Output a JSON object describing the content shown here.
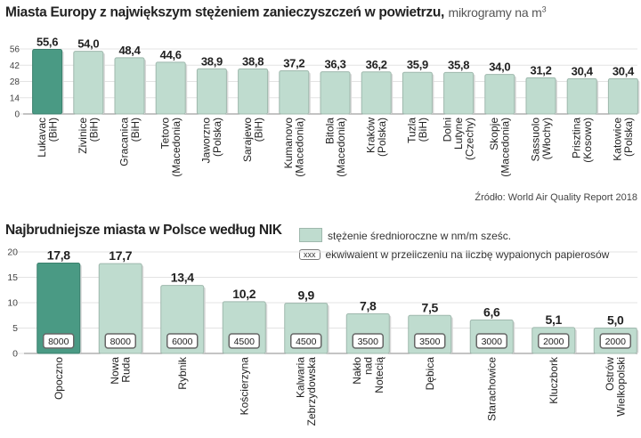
{
  "titles": {
    "chart1_bold": "Miasta Europy z największym stężeniem zanieczyszczeń w powietrzu,",
    "chart1_unit": "mikrogramy na m",
    "chart1_unit_sup": "3",
    "chart2_bold": "Najbrudniejsze miasta w Polsce według NIK",
    "source": "Źródło: World Air Quality Report 2018"
  },
  "legend": {
    "swatch_label": "stężenie średnioroczne w nm/m sześc.",
    "box_label": "xxx",
    "box_desc": "ekwiwalent w przeliczeniu na liczbę wypalonych papierosów"
  },
  "colors": {
    "bar": "#bfdccf",
    "bar_highlight": "#4a9a84",
    "bar_stroke": "#9fb8ad"
  },
  "chart_data": [
    {
      "type": "bar",
      "title": "Miasta Europy z największym stężeniem zanieczyszczeń w powietrzu, mikrogramy na m3",
      "categories": [
        "Lukavac (BiH)",
        "Zivinice (BiH)",
        "Gracanica (BiH)",
        "Tetovo (Macedonia)",
        "Jaworzno (Polska)",
        "Sarajewo (BiH)",
        "Kumanovo (Macedonia)",
        "Bitola (Macedonia)",
        "Kraków (Polska)",
        "Tuzla (BiH)",
        "Dolni Lutyne (Czechy)",
        "Skopje (Macedonia)",
        "Sassuolo (Włochy)",
        "Prisztina (Kosowo)",
        "Katowice (Polska)"
      ],
      "category_lines": [
        [
          "Lukavac",
          "(BiH)"
        ],
        [
          "Zivinice",
          "(BiH)"
        ],
        [
          "Gracanica",
          "(BiH)"
        ],
        [
          "Tetovo",
          "(Macedonia)"
        ],
        [
          "Jaworzno",
          "(Polska)"
        ],
        [
          "Sarajewo",
          "(BiH)"
        ],
        [
          "Kumanovo",
          "(Macedonia)"
        ],
        [
          "Bitola",
          "(Macedonia)"
        ],
        [
          "Kraków",
          "(Polska)"
        ],
        [
          "Tuzla",
          "(BiH)"
        ],
        [
          "Dolni",
          "Lutyne",
          "(Czechy)"
        ],
        [
          "Skopje",
          "(Macedonia)"
        ],
        [
          "Sassuolo",
          "(Włochy)"
        ],
        [
          "Prisztina",
          "(Kosowo)"
        ],
        [
          "Katowice",
          "(Polska)"
        ]
      ],
      "values": [
        55.6,
        54.0,
        48.4,
        44.6,
        38.9,
        38.8,
        37.2,
        36.3,
        36.2,
        35.9,
        35.8,
        34.0,
        31.2,
        30.4,
        30.4
      ],
      "value_labels": [
        "55,6",
        "54,0",
        "48,4",
        "44,6",
        "38,9",
        "38,8",
        "37,2",
        "36,3",
        "36,2",
        "35,9",
        "35,8",
        "34,0",
        "31,2",
        "30,4",
        "30,4"
      ],
      "yticks": [
        0,
        14,
        28,
        42,
        56
      ],
      "ylim": [
        0,
        56
      ],
      "highlight_index": 0,
      "xlabel": "",
      "ylabel": ""
    },
    {
      "type": "bar",
      "title": "Najbrudniejsze miasta w Polsce według NIK",
      "categories": [
        "Opoczno",
        "Nowa Ruda",
        "Rybnik",
        "Kościerzyna",
        "Kalwaria Zebrzydowska",
        "Nakło nad Notecią",
        "Dębica",
        "Starachowice",
        "Kluczbork",
        "Ostrów Wielkopolski"
      ],
      "category_lines": [
        [
          "Opoczno"
        ],
        [
          "Nowa",
          "Ruda"
        ],
        [
          "Rybnik"
        ],
        [
          "Kościerzyna"
        ],
        [
          "Kalwaria",
          "Zebrzydowska"
        ],
        [
          "Nakło",
          "nad",
          "Notecią"
        ],
        [
          "Dębica"
        ],
        [
          "Starachowice"
        ],
        [
          "Kluczbork"
        ],
        [
          "Ostrów",
          "Wielkopolski"
        ]
      ],
      "values": [
        17.8,
        17.7,
        13.4,
        10.2,
        9.9,
        7.8,
        7.5,
        6.6,
        5.1,
        5.0
      ],
      "value_labels": [
        "17,8",
        "17,7",
        "13,4",
        "10,2",
        "9,9",
        "7,8",
        "7,5",
        "6,6",
        "5,1",
        "5,0"
      ],
      "cigarettes": [
        "8000",
        "8000",
        "6000",
        "4500",
        "4500",
        "3500",
        "3500",
        "3000",
        "2000",
        "2000"
      ],
      "yticks": [
        0,
        5,
        10,
        15,
        20
      ],
      "ylim": [
        0,
        20
      ],
      "highlight_index": 0,
      "xlabel": "",
      "ylabel": ""
    }
  ]
}
